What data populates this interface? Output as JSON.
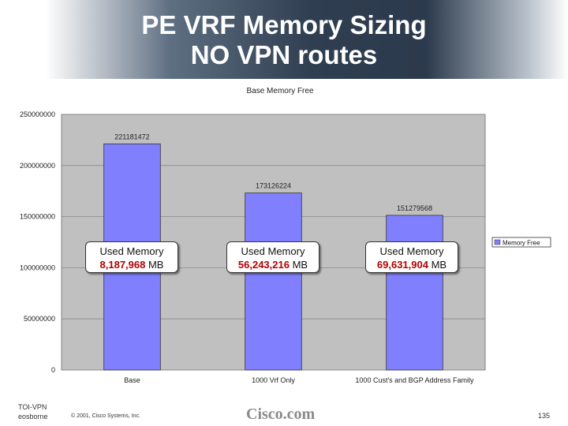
{
  "title_line1": "PE VRF Memory Sizing",
  "title_line2": "NO VPN routes",
  "callouts": [
    {
      "label": "Used Memory",
      "value": "8,187,968",
      "unit": " MB"
    },
    {
      "label": "Used Memory",
      "value": "56,243,216",
      "unit": " MB"
    },
    {
      "label": "Used Memory",
      "value": "69,631,904",
      "unit": " MB"
    }
  ],
  "footer": {
    "left_line1": "TOI-VPN",
    "left_line2": "eosborne",
    "copyright": "© 2001, Cisco Systems, Inc.",
    "logo": "Cisco.com",
    "page_number": "135"
  },
  "colors": {
    "bar": "#8080ff",
    "plot_background": "#c0c0c0",
    "callout_value": "#b30000"
  },
  "chart_data": {
    "type": "bar",
    "title": "Base Memory Free",
    "categories": [
      "Base",
      "1000 Vrf Only",
      "1000 Cust's and BGP Address Family"
    ],
    "series": [
      {
        "name": "Memory Free",
        "values": [
          221181472,
          173126224,
          151279568
        ]
      }
    ],
    "data_labels": [
      "221181472",
      "173126224",
      "151279568"
    ],
    "y_ticks": [
      "0",
      "50000000",
      "100000000",
      "150000000",
      "200000000",
      "250000000"
    ],
    "ylim": [
      0,
      250000000
    ],
    "xlabel": "",
    "ylabel": "",
    "grid": true,
    "legend_position": "right"
  }
}
